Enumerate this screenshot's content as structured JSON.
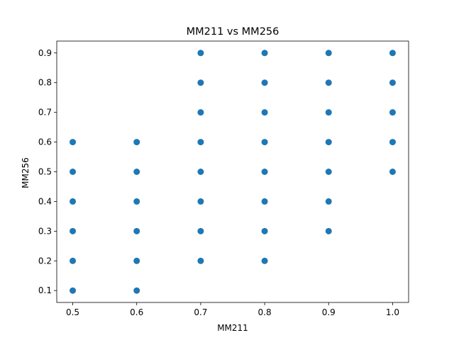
{
  "chart_data": {
    "type": "scatter",
    "title": "MM211 vs MM256",
    "xlabel": "MM211",
    "ylabel": "MM256",
    "xlim": [
      0.475,
      1.025
    ],
    "ylim": [
      0.06,
      0.94
    ],
    "xticks": [
      "0.5",
      "0.6",
      "0.7",
      "0.8",
      "0.9",
      "1.0"
    ],
    "yticks": [
      "0.1",
      "0.2",
      "0.3",
      "0.4",
      "0.5",
      "0.6",
      "0.7",
      "0.8",
      "0.9"
    ],
    "grid": false,
    "marker_color": "#1f77b4",
    "points": [
      {
        "x": 0.5,
        "y": 0.1
      },
      {
        "x": 0.5,
        "y": 0.2
      },
      {
        "x": 0.5,
        "y": 0.3
      },
      {
        "x": 0.5,
        "y": 0.4
      },
      {
        "x": 0.5,
        "y": 0.5
      },
      {
        "x": 0.5,
        "y": 0.6
      },
      {
        "x": 0.6,
        "y": 0.1
      },
      {
        "x": 0.6,
        "y": 0.2
      },
      {
        "x": 0.6,
        "y": 0.3
      },
      {
        "x": 0.6,
        "y": 0.4
      },
      {
        "x": 0.6,
        "y": 0.5
      },
      {
        "x": 0.6,
        "y": 0.6
      },
      {
        "x": 0.7,
        "y": 0.2
      },
      {
        "x": 0.7,
        "y": 0.3
      },
      {
        "x": 0.7,
        "y": 0.4
      },
      {
        "x": 0.7,
        "y": 0.5
      },
      {
        "x": 0.7,
        "y": 0.6
      },
      {
        "x": 0.7,
        "y": 0.7
      },
      {
        "x": 0.7,
        "y": 0.8
      },
      {
        "x": 0.7,
        "y": 0.9
      },
      {
        "x": 0.8,
        "y": 0.2
      },
      {
        "x": 0.8,
        "y": 0.3
      },
      {
        "x": 0.8,
        "y": 0.4
      },
      {
        "x": 0.8,
        "y": 0.5
      },
      {
        "x": 0.8,
        "y": 0.6
      },
      {
        "x": 0.8,
        "y": 0.7
      },
      {
        "x": 0.8,
        "y": 0.8
      },
      {
        "x": 0.8,
        "y": 0.9
      },
      {
        "x": 0.9,
        "y": 0.3
      },
      {
        "x": 0.9,
        "y": 0.4
      },
      {
        "x": 0.9,
        "y": 0.5
      },
      {
        "x": 0.9,
        "y": 0.6
      },
      {
        "x": 0.9,
        "y": 0.7
      },
      {
        "x": 0.9,
        "y": 0.8
      },
      {
        "x": 0.9,
        "y": 0.9
      },
      {
        "x": 1.0,
        "y": 0.5
      },
      {
        "x": 1.0,
        "y": 0.6
      },
      {
        "x": 1.0,
        "y": 0.7
      },
      {
        "x": 1.0,
        "y": 0.8
      },
      {
        "x": 1.0,
        "y": 0.9
      }
    ]
  }
}
